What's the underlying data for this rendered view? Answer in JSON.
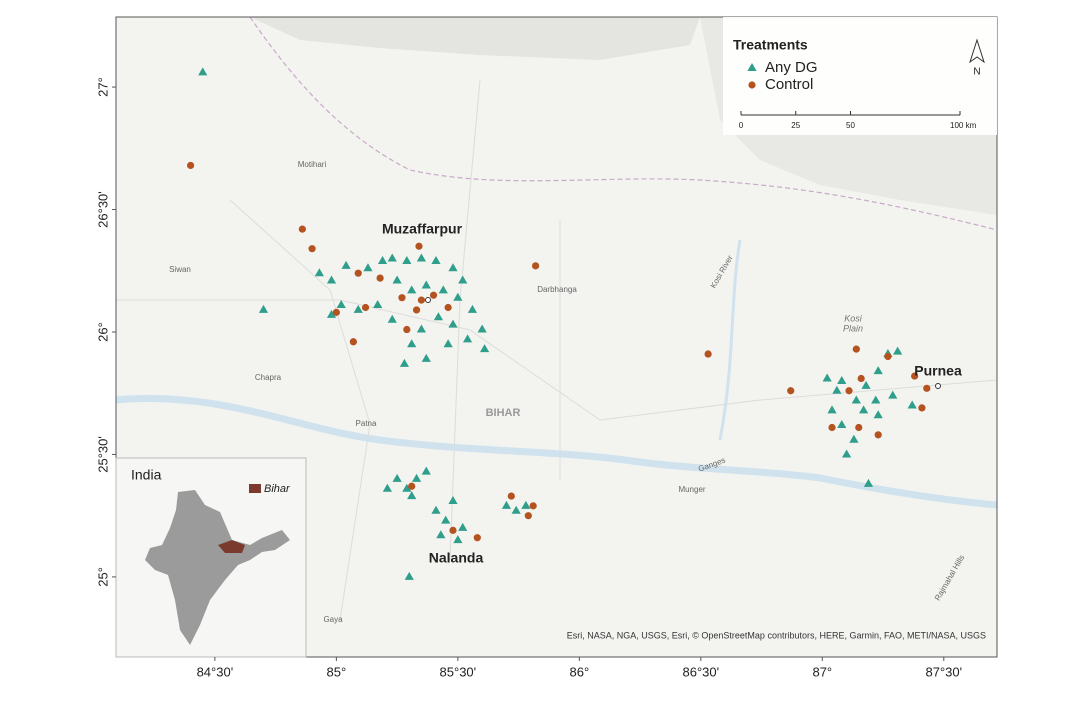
{
  "chart_data": {
    "type": "map",
    "xlim": [
      84.093,
      87.719
    ],
    "ylim": [
      24.673,
      27.286
    ],
    "xticks": [
      {
        "value": 84.5,
        "label": "84°30'"
      },
      {
        "value": 85,
        "label": "85°"
      },
      {
        "value": 85.5,
        "label": "85°30'"
      },
      {
        "value": 86,
        "label": "86°"
      },
      {
        "value": 86.5,
        "label": "86°30'"
      },
      {
        "value": 87,
        "label": "87°"
      },
      {
        "value": 87.5,
        "label": "87°30'"
      }
    ],
    "yticks": [
      {
        "value": 25,
        "label": "25°"
      },
      {
        "value": 25.5,
        "label": "25°30'"
      },
      {
        "value": 26,
        "label": "26°"
      },
      {
        "value": 26.5,
        "label": "26°30'"
      },
      {
        "value": 27,
        "label": "27°"
      }
    ],
    "legend_title": "Treatments",
    "series": [
      {
        "name": "Any DG",
        "color": "#2f9e8b",
        "marker": "triangle",
        "x": [
          84.45,
          84.7,
          84.93,
          84.98,
          85.04,
          85.13,
          85.19,
          85.23,
          85.29,
          85.35,
          85.41,
          85.48,
          85.52,
          85.25,
          85.31,
          85.37,
          85.44,
          85.5,
          85.56,
          85.6,
          85.61,
          85.54,
          85.48,
          85.42,
          85.35,
          85.31,
          85.37,
          85.28,
          85.23,
          85.17,
          85.09,
          85.02,
          84.98,
          85.46,
          85.21,
          85.25,
          85.29,
          85.33,
          85.37,
          85.31,
          85.41,
          85.45,
          85.43,
          85.52,
          85.48,
          85.5,
          85.3,
          85.7,
          85.74,
          85.78,
          87.02,
          87.06,
          87.04,
          87.08,
          87.13,
          87.1,
          87.14,
          87.18,
          87.23,
          87.27,
          87.31,
          87.22,
          87.23,
          87.17,
          87.29,
          87.37,
          87.19,
          87.08
        ],
        "y": [
          27.06,
          26.09,
          26.24,
          26.21,
          26.27,
          26.26,
          26.29,
          26.3,
          26.29,
          26.3,
          26.29,
          26.26,
          26.21,
          26.21,
          26.17,
          26.19,
          26.17,
          26.14,
          26.09,
          26.01,
          25.93,
          25.97,
          26.03,
          26.06,
          26.01,
          25.95,
          25.89,
          25.87,
          26.05,
          26.11,
          26.09,
          26.11,
          26.07,
          25.95,
          25.36,
          25.4,
          25.36,
          25.4,
          25.43,
          25.33,
          25.27,
          25.23,
          25.17,
          25.2,
          25.31,
          25.15,
          25.0,
          25.29,
          25.27,
          25.29,
          25.81,
          25.76,
          25.68,
          25.62,
          25.56,
          25.5,
          25.72,
          25.78,
          25.84,
          25.91,
          25.92,
          25.72,
          25.66,
          25.68,
          25.74,
          25.7,
          25.38,
          25.8
        ]
      },
      {
        "name": "Control",
        "color": "#b4531f",
        "marker": "circle",
        "x": [
          84.4,
          84.86,
          84.9,
          85.09,
          85.18,
          85.34,
          85.82,
          85.0,
          85.07,
          85.12,
          85.29,
          85.33,
          85.4,
          85.46,
          85.27,
          85.35,
          85.31,
          85.48,
          85.58,
          85.72,
          85.81,
          85.79,
          86.53,
          86.87,
          87.14,
          87.16,
          87.11,
          87.15,
          87.23,
          87.27,
          87.38,
          87.43,
          87.41,
          87.04
        ],
        "y": [
          26.68,
          26.42,
          26.34,
          26.24,
          26.22,
          26.35,
          26.27,
          26.08,
          25.96,
          26.1,
          26.01,
          26.09,
          26.15,
          26.1,
          26.14,
          26.13,
          25.37,
          25.19,
          25.16,
          25.33,
          25.29,
          25.25,
          25.91,
          25.76,
          25.93,
          25.81,
          25.76,
          25.61,
          25.58,
          25.9,
          25.82,
          25.77,
          25.69,
          25.61
        ]
      }
    ],
    "scale_bar": {
      "ticks": [
        0,
        25,
        50,
        {
          "value": 100,
          "label": "100 km"
        }
      ]
    },
    "north_label": "N",
    "cluster_labels": [
      "Muzaffarpur",
      "Nalanda",
      "Purnea"
    ],
    "basemap_labels": [
      "Motihari",
      "Siwan",
      "Chapra",
      "Patna",
      "Darbhanga",
      "BIHAR",
      "Kosi",
      "Plain",
      "Munger",
      "Gaya",
      "Kosi River",
      "Ganges",
      "Rajmahal Hills"
    ],
    "inset": {
      "title": "India",
      "highlight": "Bihar"
    },
    "attribution": "Esri, NASA, NGA, USGS, Esri, © OpenStreetMap contributors, HERE, Garmin, FAO, METI/NASA, USGS"
  }
}
